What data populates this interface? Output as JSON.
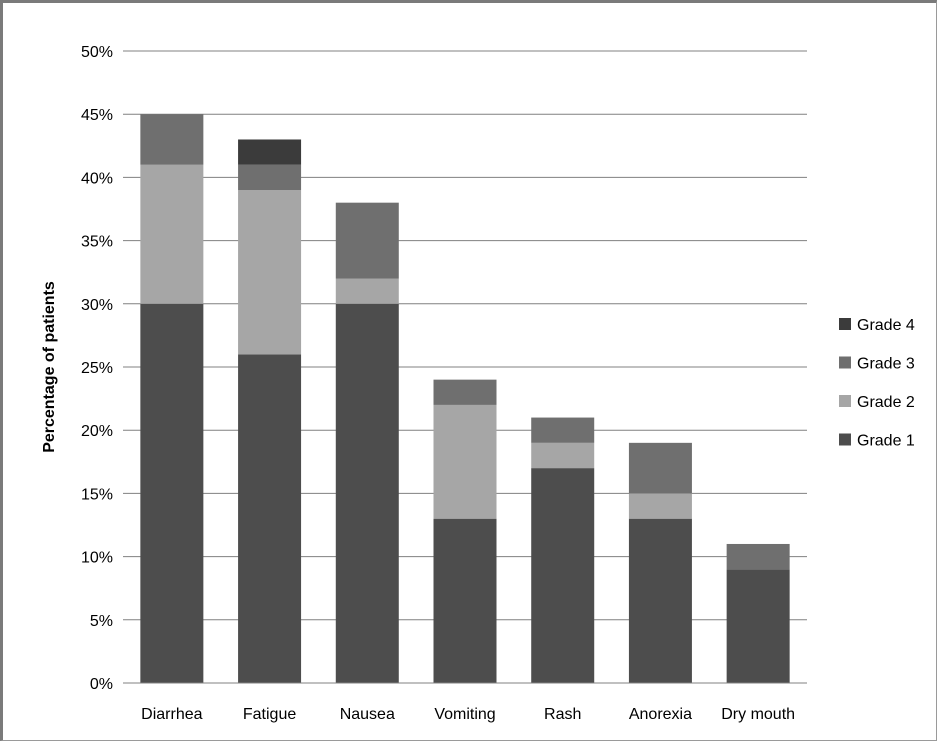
{
  "chart_data": {
    "type": "bar",
    "stacked": true,
    "xlabel": "",
    "ylabel": "Percentage of patients",
    "ylim": [
      0,
      50
    ],
    "yticks": [
      "0%",
      "5%",
      "10%",
      "15%",
      "20%",
      "25%",
      "30%",
      "35%",
      "40%",
      "45%",
      "50%"
    ],
    "categories": [
      "Diarrhea",
      "Fatigue",
      "Nausea",
      "Vomiting",
      "Rash",
      "Anorexia",
      "Dry mouth"
    ],
    "series": [
      {
        "name": "Grade 1",
        "color": "#4d4d4d",
        "values": [
          30,
          26,
          30,
          13,
          17,
          13,
          9
        ]
      },
      {
        "name": "Grade 2",
        "color": "#a6a6a6",
        "values": [
          11,
          13,
          2,
          9,
          2,
          2,
          0
        ]
      },
      {
        "name": "Grade 3",
        "color": "#6f6f6f",
        "values": [
          4,
          2,
          6,
          2,
          2,
          4,
          2
        ]
      },
      {
        "name": "Grade 4",
        "color": "#3b3b3b",
        "values": [
          0,
          2,
          0,
          0,
          0,
          0,
          0
        ]
      }
    ],
    "legend_position": "right",
    "grid": true
  }
}
